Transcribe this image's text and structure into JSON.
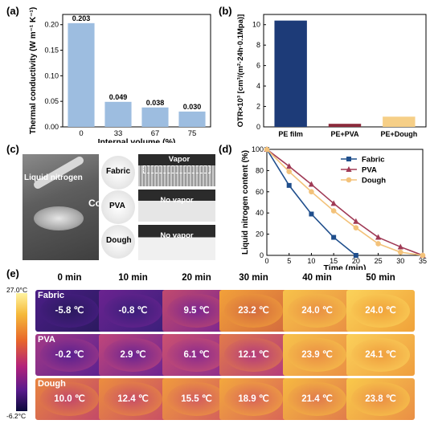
{
  "panels": {
    "a": "(a)",
    "b": "(b)",
    "c": "(c)",
    "d": "(d)",
    "e": "(e)"
  },
  "chart_data": [
    {
      "id": "a",
      "type": "bar",
      "categories": [
        "0",
        "33",
        "67",
        "75"
      ],
      "values": [
        0.203,
        0.049,
        0.038,
        0.03
      ],
      "data_labels": [
        "0.203",
        "0.049",
        "0.038",
        "0.030"
      ],
      "ylabel": "Thermal conductivity (W m⁻¹ K⁻¹)",
      "xlabel": "Internal volume (%)",
      "ylim": [
        0,
        0.22
      ],
      "yticks": [
        "0.00",
        "0.05",
        "0.10",
        "0.15",
        "0.20"
      ],
      "color": "#9dbde0"
    },
    {
      "id": "b",
      "type": "bar",
      "categories": [
        "PE film",
        "PE+PVA",
        "PE+Dough"
      ],
      "values": [
        10.4,
        0.3,
        1.0
      ],
      "colors": [
        "#1d3b78",
        "#8b2a3b",
        "#f6cf87"
      ],
      "ylabel": "OTR×10³ [cm³/(m²·24h·0.1Mpa)]",
      "ylim": [
        0,
        11
      ],
      "yticks": [
        "0",
        "2",
        "4",
        "6",
        "8",
        "10"
      ]
    },
    {
      "id": "d",
      "type": "line",
      "xlabel": "Time (min)",
      "ylabel": "Liquid nitrogen content (%)",
      "xlim": [
        0,
        35
      ],
      "ylim": [
        0,
        100
      ],
      "xticks": [
        "0",
        "5",
        "10",
        "15",
        "20",
        "25",
        "30",
        "35"
      ],
      "yticks": [
        "0",
        "20",
        "40",
        "60",
        "80",
        "100"
      ],
      "legend": "top-right",
      "series": [
        {
          "name": "Fabric",
          "color": "#1f4e8c",
          "marker": "square",
          "x": [
            0,
            5,
            10,
            15,
            20
          ],
          "y": [
            100,
            66,
            39,
            17,
            0
          ]
        },
        {
          "name": "PVA",
          "color": "#a03a55",
          "marker": "triangle",
          "x": [
            0,
            5,
            10,
            15,
            20,
            25,
            30,
            35
          ],
          "y": [
            100,
            84,
            67,
            49,
            32,
            17,
            8,
            0
          ]
        },
        {
          "name": "Dough",
          "color": "#f3c27a",
          "marker": "circle",
          "x": [
            0,
            5,
            10,
            15,
            20,
            25,
            30,
            35
          ],
          "y": [
            100,
            79,
            60,
            42,
            26,
            11,
            3,
            0
          ]
        }
      ]
    }
  ],
  "photo_c": {
    "left_label": "Liquid nitrogen",
    "cover_label": "Cover",
    "samples": [
      "Fabric",
      "PVA",
      "Dough"
    ],
    "strip_labels": [
      "Vapor",
      "No vapor",
      "No vapor"
    ]
  },
  "thermal": {
    "times": [
      "0 min",
      "10 min",
      "20 min",
      "30 min",
      "40 min",
      "50 min"
    ],
    "colorbar_max": "27.0°C",
    "colorbar_min": "-6.2°C",
    "rows": [
      {
        "name": "Fabric",
        "temps": [
          "-5.8 ℃",
          "-0.8 ℃",
          "9.5 ℃",
          "23.2 ℃",
          "24.0 ℃",
          "24.0 ℃"
        ]
      },
      {
        "name": "PVA",
        "temps": [
          "-0.2 ℃",
          "2.9 ℃",
          "6.1 ℃",
          "12.1 ℃",
          "23.9 ℃",
          "24.1 ℃"
        ]
      },
      {
        "name": "Dough",
        "temps": [
          "10.0 ℃",
          "12.4 ℃",
          "15.5 ℃",
          "18.9 ℃",
          "21.4 ℃",
          "23.8 ℃"
        ]
      }
    ]
  }
}
